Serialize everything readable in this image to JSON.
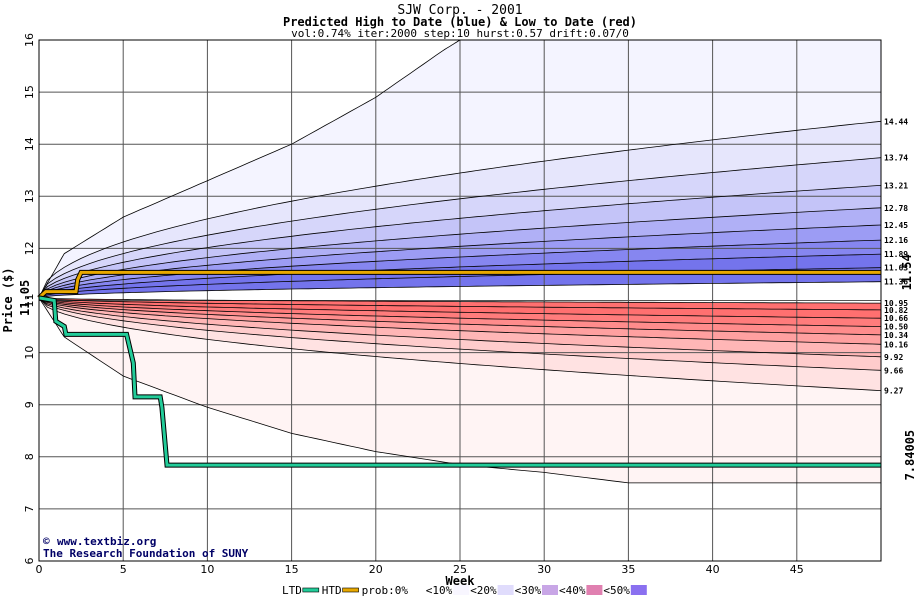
{
  "chart_data": {
    "type": "area",
    "title": "SJW Corp. - 2001",
    "subtitle": "Predicted High to Date (blue) &  Low to Date (red)",
    "params": "vol:0.74% iter:2000 step:10 hurst:0.57 drift:0.07/0",
    "xlabel": "Week",
    "ylabel": "Price ($)",
    "xlim": [
      0,
      50
    ],
    "ylim": [
      6,
      16
    ],
    "x_ticks": [
      "0",
      "5",
      "10",
      "15",
      "20",
      "25",
      "30",
      "35",
      "40",
      "45"
    ],
    "y_ticks": [
      "6",
      "7",
      "8",
      "9",
      "10",
      "11",
      "12",
      "13",
      "14",
      "15",
      "16"
    ],
    "grid": true,
    "start_price": 11.05,
    "start_price_label": "11.05",
    "high_percentile_ends": [
      "14.44",
      "13.74",
      "13.21",
      "12.78",
      "12.45",
      "12.16",
      "11.89",
      "11.63",
      "11.36"
    ],
    "low_percentile_ends": [
      "10.95",
      "10.82",
      "10.66",
      "10.50",
      "10.34",
      "10.16",
      "9.92",
      "9.66",
      "9.27"
    ],
    "high_to_date": {
      "name": "HTD",
      "color": "#e8a800",
      "points": [
        [
          0,
          11.05
        ],
        [
          0.4,
          11.17
        ],
        [
          2.2,
          11.17
        ],
        [
          2.3,
          11.4
        ],
        [
          2.5,
          11.54
        ],
        [
          50,
          11.54
        ]
      ],
      "label": "11.54"
    },
    "low_to_date": {
      "name": "LTD",
      "color": "#22cc99",
      "points": [
        [
          0,
          11.05
        ],
        [
          0.9,
          11.0
        ],
        [
          1.0,
          10.6
        ],
        [
          1.5,
          10.5
        ],
        [
          1.6,
          10.35
        ],
        [
          5.2,
          10.35
        ],
        [
          5.6,
          9.8
        ],
        [
          5.7,
          9.15
        ],
        [
          7.2,
          9.15
        ],
        [
          7.3,
          8.95
        ],
        [
          7.6,
          7.84005
        ],
        [
          50,
          7.84005
        ]
      ],
      "label": "7.84005"
    },
    "outer_envelope": {
      "upper": [
        [
          0,
          11.05
        ],
        [
          1.5,
          11.9
        ],
        [
          5,
          12.6
        ],
        [
          10,
          13.3
        ],
        [
          15,
          14.0
        ],
        [
          20,
          14.9
        ],
        [
          24,
          15.8
        ],
        [
          25,
          16.0
        ]
      ],
      "lower": [
        [
          0,
          11.05
        ],
        [
          1.5,
          10.3
        ],
        [
          5,
          9.55
        ],
        [
          10,
          8.95
        ],
        [
          15,
          8.45
        ],
        [
          20,
          8.1
        ],
        [
          25,
          7.85
        ],
        [
          30,
          7.7
        ],
        [
          35,
          7.5
        ],
        [
          50,
          7.5
        ]
      ]
    },
    "legend": {
      "items": [
        "LTD",
        "HTD",
        "prob:0%",
        "<10%",
        "<20%",
        "<30%",
        "<40%",
        "<50%"
      ],
      "colors": [
        "#22cc99",
        "#e8a800",
        "#ffffff",
        "#f8f6ff",
        "#e0dcfc",
        "#c8a6e6",
        "#e080b0",
        "#8a70f0"
      ]
    },
    "credit": {
      "line1": "www.textbiz.org",
      "line2": "The Research Foundation of SUNY",
      "copyright_symbol": "©"
    },
    "colors": {
      "high_bands": [
        "#f4f4ff",
        "#e6e6fc",
        "#d6d6fa",
        "#c4c4f8",
        "#b0b0f6",
        "#9c9cf4",
        "#8686f0",
        "#7474ec"
      ],
      "low_bands": [
        "#fff4f4",
        "#ffe2e2",
        "#ffcccc",
        "#ffb6b6",
        "#ffa0a0",
        "#ff8c8c",
        "#ff7c7c",
        "#ff7070"
      ]
    }
  }
}
